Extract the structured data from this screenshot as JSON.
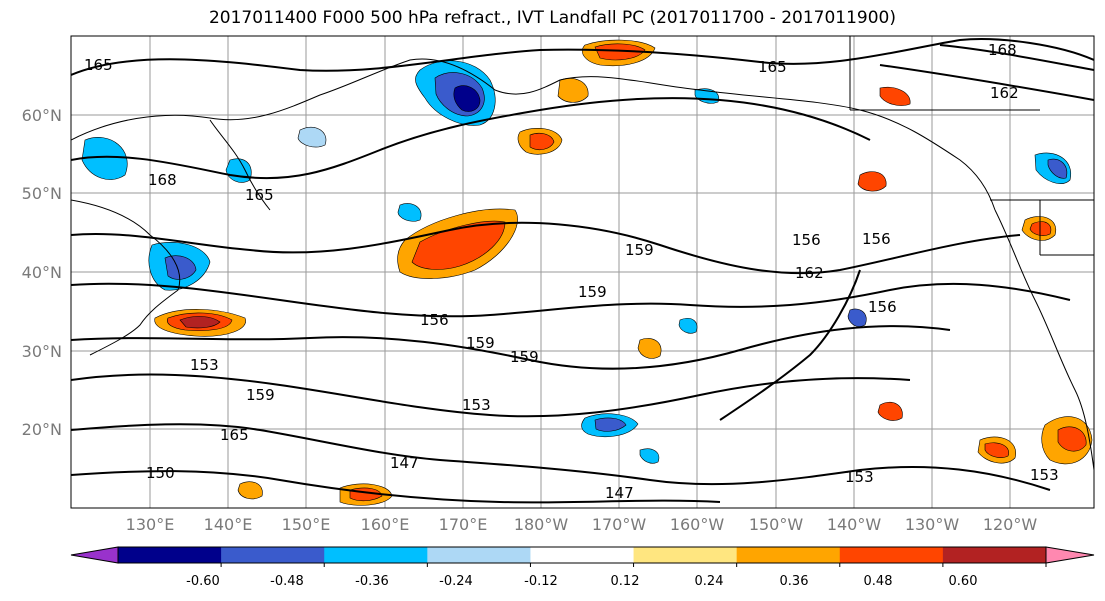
{
  "title": "2017011400 F000 500 hPa refract., IVT Landfall PC (2017011700 - 2017011900)",
  "lat_labels": [
    "60°N",
    "50°N",
    "40°N",
    "30°N",
    "20°N"
  ],
  "lon_labels": [
    "130°E",
    "140°E",
    "150°E",
    "160°E",
    "170°E",
    "180°W",
    "170°W",
    "160°W",
    "150°W",
    "140°W",
    "130°W",
    "120°W"
  ],
  "contour_labels": [
    "165",
    "168",
    "165",
    "168",
    "162",
    "165",
    "153",
    "159",
    "156",
    "156",
    "159",
    "159",
    "156",
    "159",
    "153",
    "159",
    "153",
    "150",
    "147",
    "147",
    "153",
    "156",
    "165",
    "162"
  ],
  "colorbar": {
    "colors": [
      "#9932cc",
      "#00008b",
      "#3a5bcc",
      "#00bfff",
      "#add8f5",
      "#ffffff",
      "#ffe680",
      "#ffa500",
      "#ff4500",
      "#b22222",
      "#ff88b0"
    ],
    "tick_labels": [
      "-0.60",
      "-0.48",
      "-0.36",
      "-0.24",
      "-0.12",
      "0.12",
      "0.24",
      "0.36",
      "0.48",
      "0.60"
    ]
  }
}
